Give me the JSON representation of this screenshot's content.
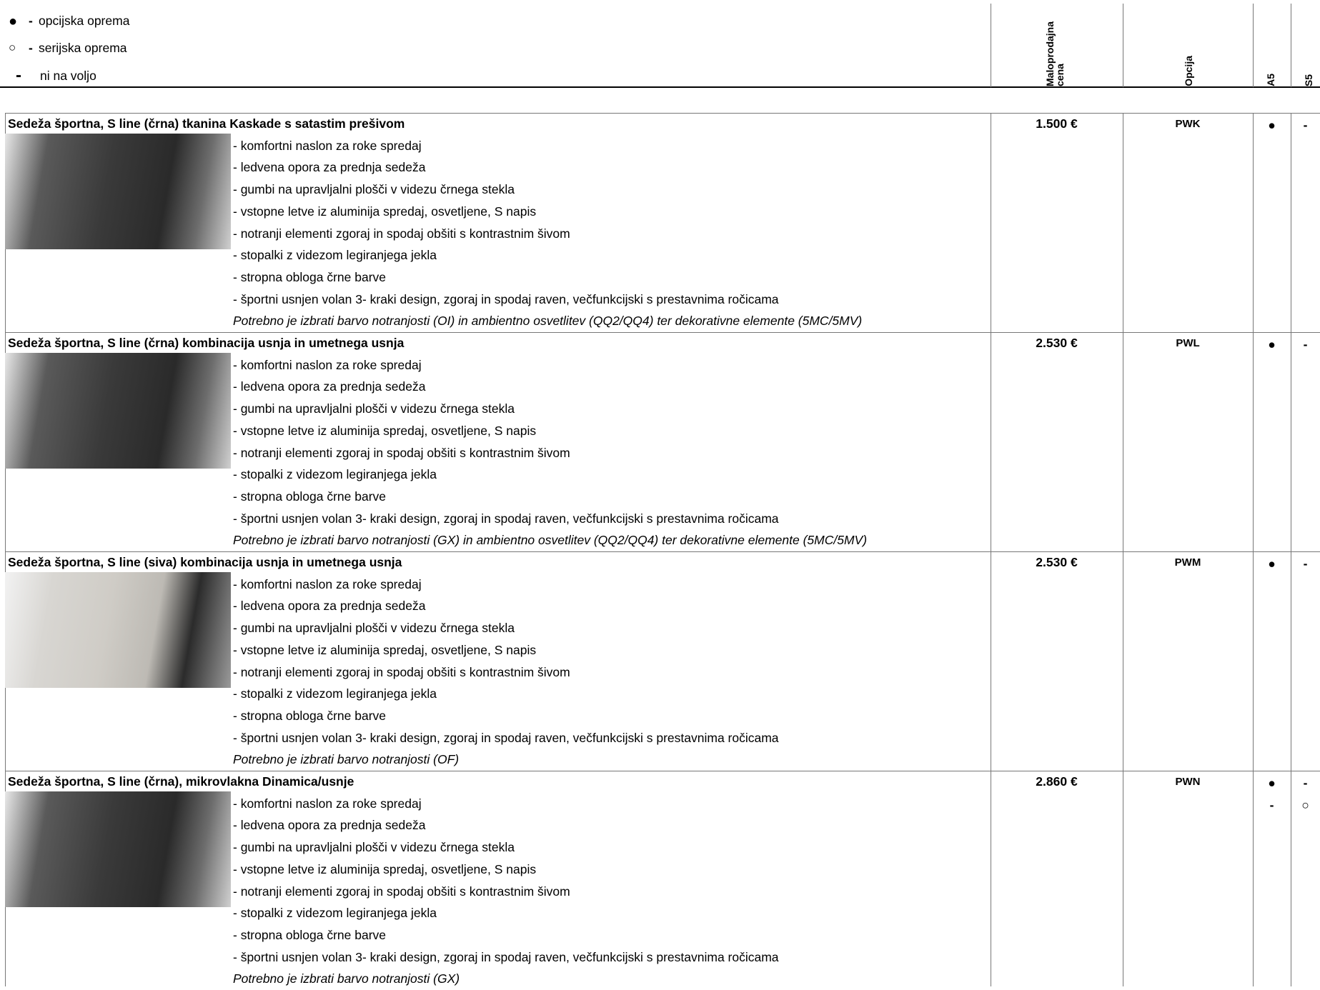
{
  "legend": [
    {
      "symbol": "●",
      "dash": "-",
      "text": "opcijska oprema"
    },
    {
      "symbol": "○",
      "dash": "-",
      "text": "serijska oprema"
    },
    {
      "symbol": "-",
      "text": "ni na voljo"
    }
  ],
  "columns": [
    "Maloprodajna cena",
    "Opcija",
    "A5",
    "S5"
  ],
  "rows": [
    {
      "title": "Sedeža športna, S line (črna) tkanina Kaskade s satastim prešivom",
      "features": [
        "- komfortni naslon za roke spredaj",
        "- ledvena opora za prednja sedeža",
        "- gumbi na upravljalni plošči v videzu črnega stekla",
        "- vstopne letve iz aluminija spredaj, osvetljene, S napis",
        "- notranji elementi zgoraj in spodaj obšiti s kontrastnim šivom",
        "- stopalki z videzom legiranjega jekla",
        "- stropna obloga črne barve",
        "- športni usnjen volan 3- kraki design, zgoraj in spodaj raven, večfunkcijski s prestavnima ročicama"
      ],
      "note": "Potrebno je izbrati barvo notranjosti (OI) in ambientno osvetlitev (QQ2/QQ4) ter dekorativne elemente (5MC/5MV)",
      "price": "1.500 €",
      "code": "PWK",
      "a5": [
        "●"
      ],
      "s5": [
        "-"
      ]
    },
    {
      "title": "Sedeža športna, S line (črna)  kombinacija usnja in umetnega usnja",
      "features": [
        "- komfortni naslon za roke spredaj",
        "- ledvena opora za prednja sedeža",
        "- gumbi na upravljalni plošči v videzu črnega stekla",
        "- vstopne letve iz aluminija spredaj, osvetljene, S napis",
        "- notranji elementi zgoraj in spodaj obšiti s kontrastnim šivom",
        "- stopalki z videzom legiranjega jekla",
        "- stropna obloga črne barve",
        "- športni usnjen volan 3- kraki design, zgoraj in spodaj raven, večfunkcijski s prestavnima ročicama"
      ],
      "note": "Potrebno je izbrati barvo notranjosti (GX) in ambientno osvetlitev (QQ2/QQ4) ter dekorativne elemente (5MC/5MV)",
      "price": "2.530 €",
      "code": "PWL",
      "a5": [
        "●"
      ],
      "s5": [
        "-"
      ]
    },
    {
      "title": "Sedeža športna, S line (siva) kombinacija usnja in umetnega usnja",
      "features": [
        "- komfortni naslon za roke spredaj",
        "- ledvena opora za prednja sedeža",
        "- gumbi na upravljalni plošči v videzu črnega stekla",
        "- vstopne letve iz aluminija spredaj, osvetljene, S napis",
        "- notranji elementi zgoraj in spodaj obšiti s kontrastnim šivom",
        "- stopalki z videzom legiranjega jekla",
        "- stropna obloga črne barve",
        "- športni usnjen volan 3- kraki design, zgoraj in spodaj raven, večfunkcijski s prestavnima ročicama"
      ],
      "note": "Potrebno je izbrati barvo notranjosti (OF)",
      "price": "2.530 €",
      "code": "PWM",
      "a5": [
        "●"
      ],
      "s5": [
        "-"
      ]
    },
    {
      "title": "Sedeža športna, S line (črna), mikrovlakna Dinamica/usnje",
      "features": [
        "- komfortni naslon za roke spredaj",
        "- ledvena opora za prednja sedeža",
        "- gumbi na upravljalni plošči v videzu črnega stekla",
        "- vstopne letve iz aluminija spredaj, osvetljene, S napis",
        "- notranji elementi zgoraj in spodaj obšiti s kontrastnim šivom",
        "- stopalki z videzom legiranjega jekla",
        "- stropna obloga črne barve",
        "- športni usnjen volan 3- kraki design, zgoraj in spodaj raven, večfunkcijski s prestavnima ročicama"
      ],
      "note": "Potrebno je izbrati barvo notranjosti (GX)",
      "price": "2.860 €",
      "code": "PWN",
      "a5": [
        "●",
        "-"
      ],
      "s5": [
        "-",
        "○"
      ]
    }
  ]
}
